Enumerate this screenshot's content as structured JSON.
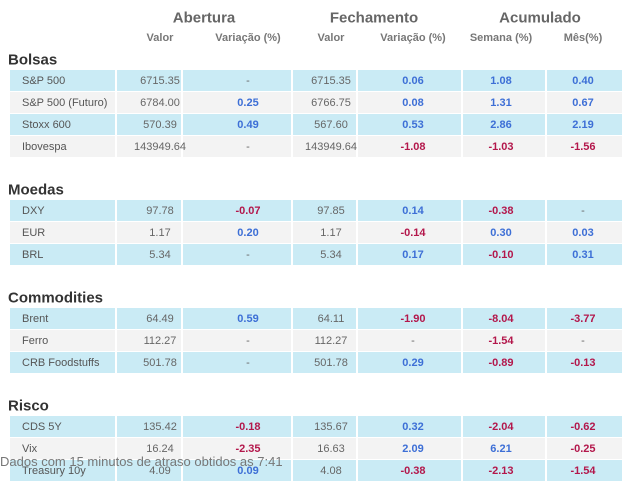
{
  "header": {
    "groups": [
      "Abertura",
      "Fechamento",
      "Acumulado"
    ],
    "columns": [
      "Valor",
      "Variação (%)",
      "Valor",
      "Variação (%)",
      "Semana (%)",
      "Mês(%)"
    ]
  },
  "sections": [
    {
      "title": "Bolsas",
      "rows": [
        [
          "S&P 500",
          "6715.35",
          "-",
          "6715.35",
          "0.06",
          "1.08",
          "0.40"
        ],
        [
          "S&P 500 (Futuro)",
          "6784.00",
          "0.25",
          "6766.75",
          "0.08",
          "1.31",
          "0.67"
        ],
        [
          "Stoxx 600",
          "570.39",
          "0.49",
          "567.60",
          "0.53",
          "2.86",
          "2.19"
        ],
        [
          "Ibovespa",
          "143949.64",
          "-",
          "143949.64",
          "-1.08",
          "-1.03",
          "-1.56"
        ]
      ]
    },
    {
      "title": "Moedas",
      "rows": [
        [
          "DXY",
          "97.78",
          "-0.07",
          "97.85",
          "0.14",
          "-0.38",
          "-"
        ],
        [
          "EUR",
          "1.17",
          "0.20",
          "1.17",
          "-0.14",
          "0.30",
          "0.03"
        ],
        [
          "BRL",
          "5.34",
          "-",
          "5.34",
          "0.17",
          "-0.10",
          "0.31"
        ]
      ]
    },
    {
      "title": "Commodities",
      "rows": [
        [
          "Brent",
          "64.49",
          "0.59",
          "64.11",
          "-1.90",
          "-8.04",
          "-3.77"
        ],
        [
          "Ferro",
          "112.27",
          "-",
          "112.27",
          "-",
          "-1.54",
          "-"
        ],
        [
          "CRB Foodstuffs",
          "501.78",
          "-",
          "501.78",
          "0.29",
          "-0.89",
          "-0.13"
        ]
      ]
    },
    {
      "title": "Risco",
      "rows": [
        [
          "CDS 5Y",
          "135.42",
          "-0.18",
          "135.67",
          "0.32",
          "-2.04",
          "-0.62"
        ],
        [
          "Vix",
          "16.24",
          "-2.35",
          "16.63",
          "2.09",
          "6.21",
          "-0.25"
        ],
        [
          "Treasury 10y",
          "4.09",
          "0.09",
          "4.08",
          "-0.38",
          "-2.13",
          "-1.54"
        ]
      ]
    }
  ],
  "footer": "Dados com 15 minutos de atraso obtidos as 7:41"
}
